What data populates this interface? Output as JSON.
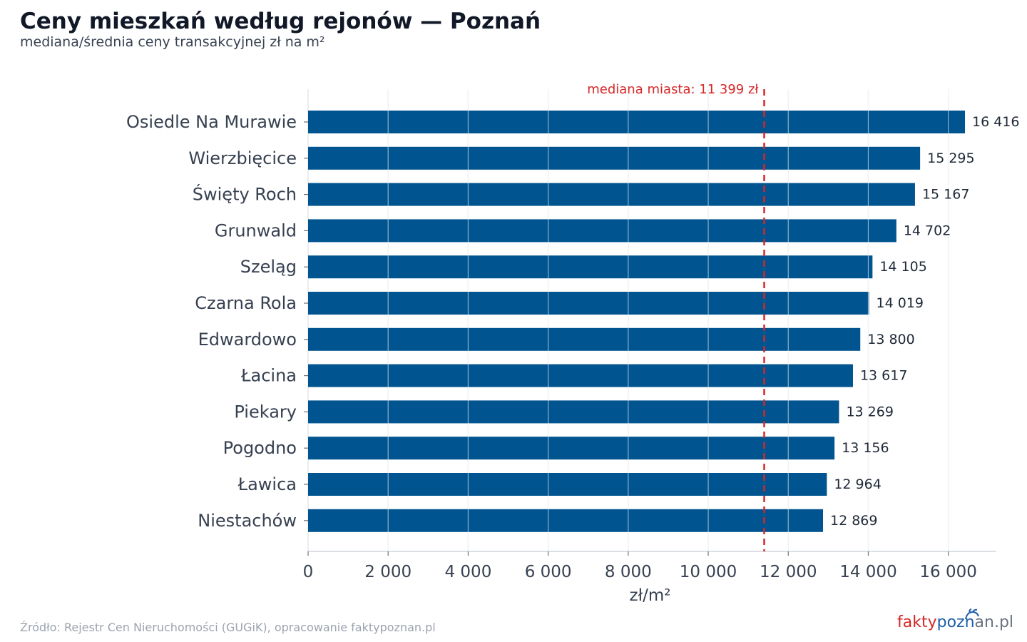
{
  "header": {
    "title": "Ceny mieszkań według rejonów — Poznań",
    "subtitle": "mediana/średnia ceny transakcyjnej zł na m²"
  },
  "footer": {
    "source": "Źródło: Rejestr Cen Nieruchomości (GUGiK), opracowanie faktypoznan.pl",
    "logo_part1": "fakty",
    "logo_part2": "pozn",
    "logo_part3": "an.pl"
  },
  "colors": {
    "bar": "#00548f",
    "reference_line": "#d62728",
    "grid": "#e5e7eb"
  },
  "chart_data": {
    "type": "bar",
    "orientation": "horizontal",
    "categories": [
      "Osiedle Na Murawie",
      "Wierzbięcice",
      "Święty Roch",
      "Grunwald",
      "Szeląg",
      "Czarna Rola",
      "Edwardowo",
      "Łacina",
      "Piekary",
      "Pogodno",
      "Ławica",
      "Niestachów"
    ],
    "values": [
      16416,
      15295,
      15167,
      14702,
      14105,
      14019,
      13800,
      13617,
      13269,
      13156,
      12964,
      12869
    ],
    "value_labels": [
      "16 416",
      "15 295",
      "15 167",
      "14 702",
      "14 105",
      "14 019",
      "13 800",
      "13 617",
      "13 269",
      "13 156",
      "12 964",
      "12 869"
    ],
    "xlabel": "zł/m²",
    "xlim": [
      0,
      17200
    ],
    "xticks": [
      0,
      2000,
      4000,
      6000,
      8000,
      10000,
      12000,
      14000,
      16000
    ],
    "xtick_labels": [
      "0",
      "2 000",
      "4 000",
      "6 000",
      "8 000",
      "10 000",
      "12 000",
      "14 000",
      "16 000"
    ],
    "grid": true,
    "reference_line": {
      "value": 11399,
      "label": "mediana miasta: 11 399 zł"
    }
  }
}
